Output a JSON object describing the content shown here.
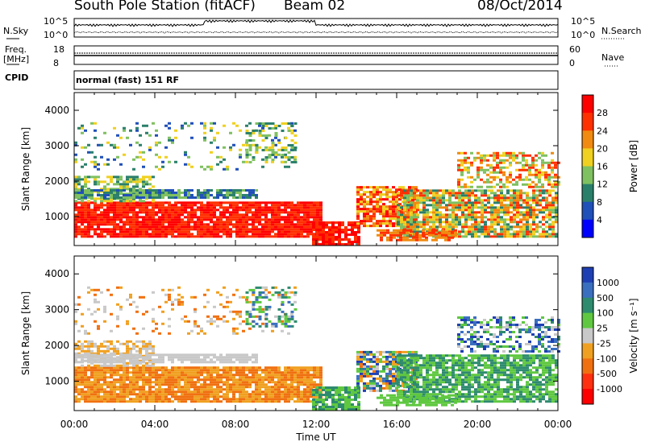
{
  "header": {
    "station": "South Pole Station (fitACF)",
    "beam": "Beam 02",
    "date": "08/Oct/2014"
  },
  "top_panels": {
    "nsky_label": "N.Sky",
    "nsearch_label": "N.Search",
    "nsky_tick_top": "10^5",
    "nsky_tick_bottom": "10^0",
    "freq_label": "Freq.",
    "freq_unit": "[MHz]",
    "freq_tick_top": "18",
    "freq_tick_bottom": "8",
    "nave_label": "Nave",
    "nave_tick_top": "60",
    "nave_tick_bottom": "0",
    "cpid_label": "CPID",
    "cpid_value": "normal (fast) 151 RF"
  },
  "chart_data": [
    {
      "type": "heatmap",
      "name": "power",
      "ylabel": "Slant Range [km]",
      "yticks": [
        "1000",
        "2000",
        "3000",
        "4000"
      ],
      "ylim": [
        180,
        4500
      ],
      "xlim": [
        0,
        24
      ],
      "colorbar_label": "Power [dB]",
      "colorbar_ticks": [
        "4",
        "8",
        "12",
        "16",
        "20",
        "24",
        "28"
      ],
      "colorbar_colors": [
        "#0000ff",
        "#1f4fb8",
        "#2a7f6a",
        "#7fc060",
        "#f0d020",
        "#f08a10",
        "#ff3000",
        "#ff0000"
      ]
    },
    {
      "type": "heatmap",
      "name": "velocity",
      "ylabel": "Slant Range [km]",
      "yticks": [
        "1000",
        "2000",
        "3000",
        "4000"
      ],
      "ylim": [
        180,
        4500
      ],
      "xlim": [
        0,
        24
      ],
      "colorbar_label": "Velocity [m s⁻¹]",
      "colorbar_ticks": [
        "1000",
        "500",
        "100",
        "25",
        "-25",
        "-100",
        "-500",
        "-1000"
      ],
      "colorbar_colors": [
        "#1e3fb4",
        "#3a6fbf",
        "#2e8b6e",
        "#5fc840",
        "#c8c8c8",
        "#f0a020",
        "#f07010",
        "#ff3010",
        "#ff0000"
      ]
    }
  ],
  "x_axis": {
    "label": "Time UT",
    "ticks": [
      "00:00",
      "04:00",
      "08:00",
      "12:00",
      "16:00",
      "20:00",
      "00:00"
    ]
  }
}
